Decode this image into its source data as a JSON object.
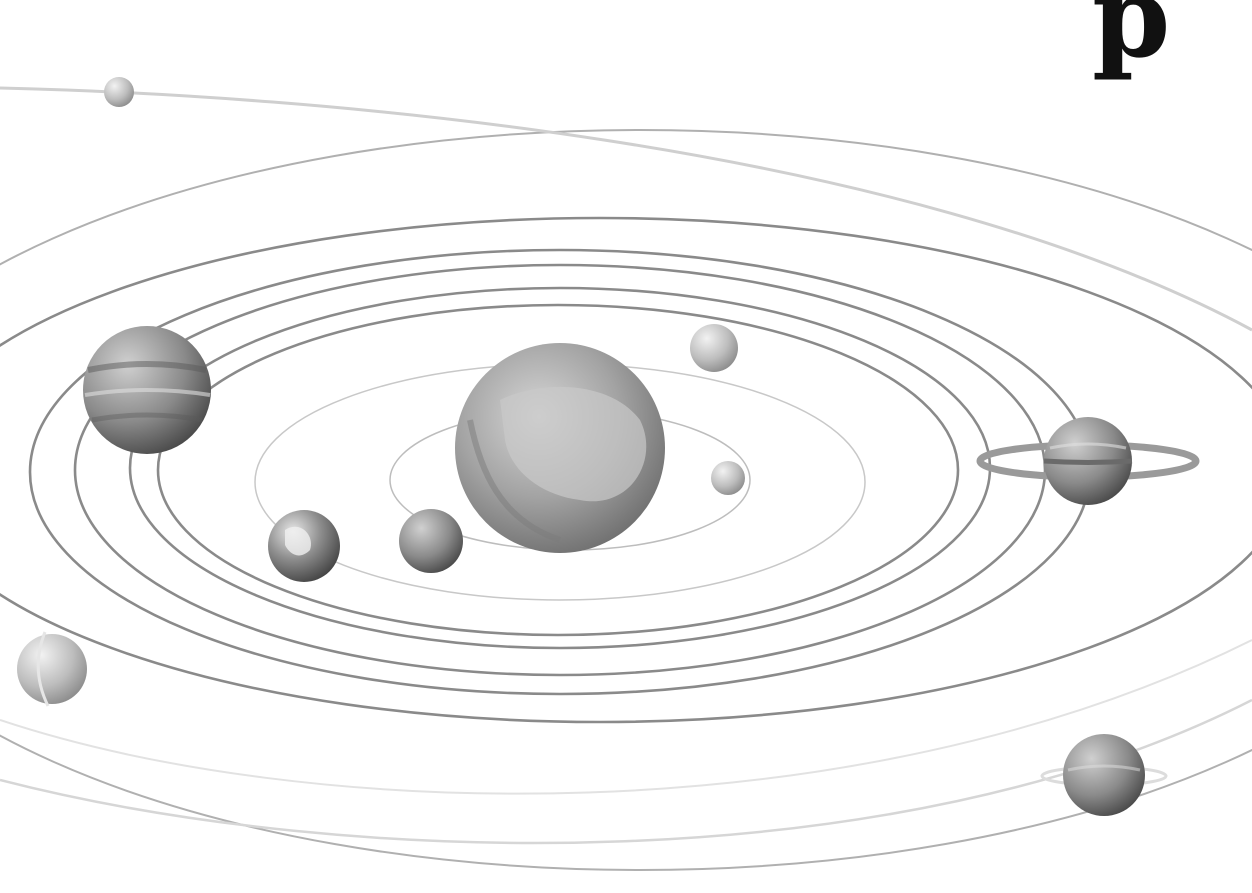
{
  "header": {
    "partial_title_glyph": "p"
  },
  "colors": {
    "background": "#ffffff",
    "orbit": "#8a8a8a",
    "sun": "#9c9c9c",
    "ink": "#111111"
  },
  "bodies": [
    {
      "name": "sun",
      "icon": "sun-icon"
    },
    {
      "name": "mercury",
      "icon": "planet-icon"
    },
    {
      "name": "venus",
      "icon": "planet-icon"
    },
    {
      "name": "earth",
      "icon": "planet-icon"
    },
    {
      "name": "mars",
      "icon": "planet-icon"
    },
    {
      "name": "jupiter",
      "icon": "planet-icon"
    },
    {
      "name": "saturn",
      "icon": "planet-ringed-icon"
    },
    {
      "name": "uranus",
      "icon": "planet-icon"
    },
    {
      "name": "neptune",
      "icon": "planet-icon"
    },
    {
      "name": "pluto",
      "icon": "planet-icon"
    }
  ]
}
